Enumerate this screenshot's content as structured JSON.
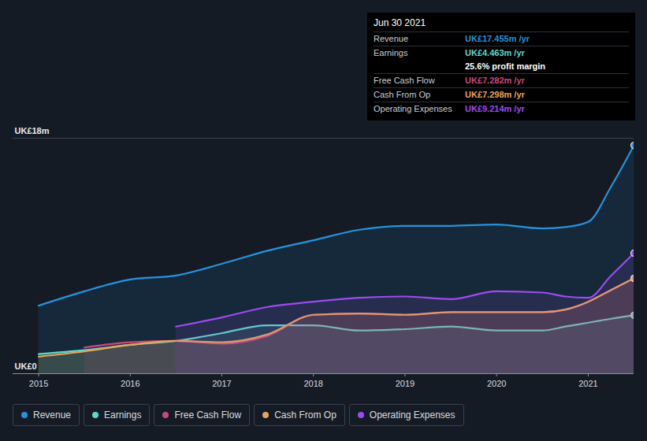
{
  "chart_data": {
    "type": "area",
    "x": [
      2015,
      2015.5,
      2016,
      2016.5,
      2017,
      2017.5,
      2018,
      2018.5,
      2019,
      2019.5,
      2020,
      2020.5,
      2020.75,
      2021,
      2021.25,
      2021.5
    ],
    "xlim": [
      2014.72,
      2021.5
    ],
    "xticks": [
      2015,
      2016,
      2017,
      2018,
      2019,
      2020,
      2021
    ],
    "ylim": [
      0,
      18
    ],
    "yticks": [
      {
        "value": 0,
        "label": "UK£0"
      },
      {
        "value": 18,
        "label": "UK£18m"
      }
    ],
    "grid": true,
    "legend": "bottom",
    "series": [
      {
        "name": "Revenue",
        "color": "#2394df",
        "values": [
          5.2,
          6.3,
          7.2,
          7.5,
          8.4,
          9.4,
          10.2,
          11.0,
          11.3,
          11.3,
          11.4,
          11.1,
          11.2,
          11.6,
          14.3,
          17.455
        ]
      },
      {
        "name": "Earnings",
        "color": "#5fd8c9",
        "values": [
          1.5,
          1.8,
          2.2,
          2.5,
          3.1,
          3.7,
          3.7,
          3.3,
          3.4,
          3.6,
          3.3,
          3.3,
          3.6,
          3.9,
          4.2,
          4.463
        ]
      },
      {
        "name": "Free Cash Flow",
        "color": "#c9487a",
        "values": [
          null,
          2.0,
          2.4,
          2.5,
          2.3,
          2.9,
          4.5,
          4.6,
          4.5,
          4.7,
          4.7,
          4.7,
          4.9,
          5.5,
          6.4,
          7.282
        ]
      },
      {
        "name": "Cash From Op",
        "color": "#e8a45c",
        "values": [
          1.3,
          1.7,
          2.2,
          2.5,
          2.4,
          3.0,
          4.5,
          4.6,
          4.5,
          4.7,
          4.7,
          4.7,
          4.9,
          5.5,
          6.4,
          7.298
        ]
      },
      {
        "name": "Operating Expenses",
        "color": "#9d4bf0",
        "values": [
          null,
          null,
          null,
          3.6,
          4.3,
          5.1,
          5.5,
          5.8,
          5.9,
          5.7,
          6.3,
          6.2,
          5.9,
          5.8,
          7.5,
          9.214
        ]
      }
    ],
    "annotation": {
      "title": "Jun 30 2021",
      "labels": [
        "UK£17.455m /yr",
        "UK£4.463m /yr",
        "UK£7.282m /yr",
        "UK£7.298m /yr",
        "UK£9.214m /yr"
      ],
      "note": "25.6% profit margin"
    }
  }
}
